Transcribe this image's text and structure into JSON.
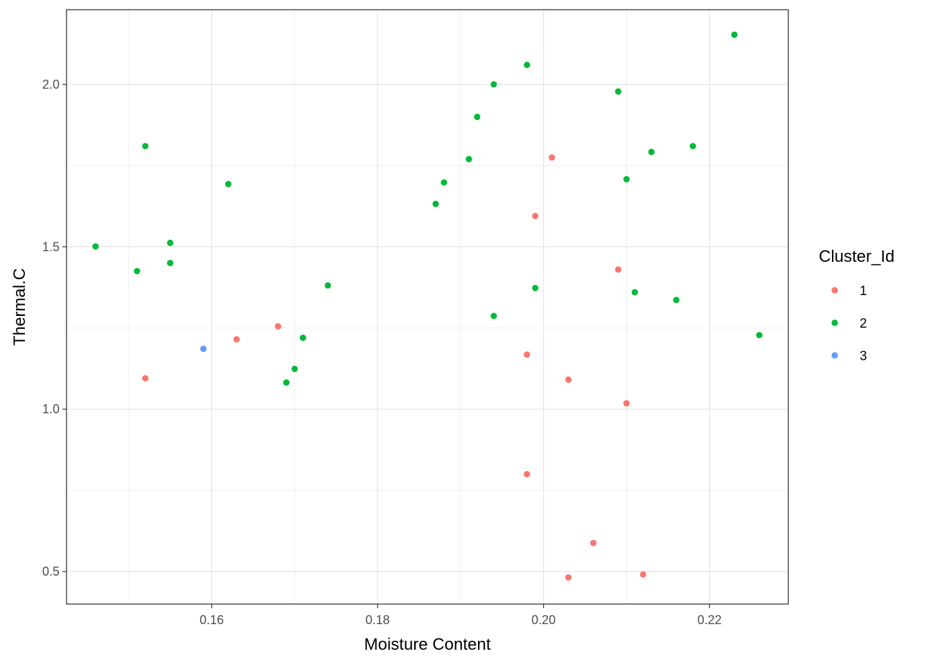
{
  "chart_data": {
    "type": "scatter",
    "title": "",
    "xlabel": "Moisture Content",
    "ylabel": "Thermal.C",
    "xlim": [
      0.1425,
      0.2295
    ],
    "ylim": [
      0.4,
      2.23
    ],
    "x_ticks": [
      0.16,
      0.18,
      0.2,
      0.22
    ],
    "x_tick_labels": [
      "0.16",
      "0.18",
      "0.20",
      "0.22"
    ],
    "y_ticks": [
      0.5,
      1.0,
      1.5,
      2.0
    ],
    "y_tick_labels": [
      "0.5",
      "1.0",
      "1.5",
      "2.0"
    ],
    "grid": true,
    "legend": {
      "title": "Cluster_Id",
      "position": "right"
    },
    "series": [
      {
        "name": "1",
        "color": "#F8766D",
        "points": [
          [
            0.152,
            1.095
          ],
          [
            0.163,
            1.215
          ],
          [
            0.168,
            1.255
          ],
          [
            0.198,
            1.168
          ],
          [
            0.199,
            1.595
          ],
          [
            0.201,
            1.775
          ],
          [
            0.203,
            1.091
          ],
          [
            0.209,
            1.43
          ],
          [
            0.21,
            1.018
          ],
          [
            0.198,
            0.8
          ],
          [
            0.206,
            0.588
          ],
          [
            0.203,
            0.482
          ],
          [
            0.212,
            0.491
          ]
        ]
      },
      {
        "name": "2",
        "color": "#00BA38",
        "points": [
          [
            0.146,
            1.501
          ],
          [
            0.151,
            1.425
          ],
          [
            0.152,
            1.81
          ],
          [
            0.155,
            1.512
          ],
          [
            0.155,
            1.45
          ],
          [
            0.162,
            1.693
          ],
          [
            0.169,
            1.082
          ],
          [
            0.17,
            1.124
          ],
          [
            0.171,
            1.22
          ],
          [
            0.174,
            1.381
          ],
          [
            0.187,
            1.632
          ],
          [
            0.188,
            1.698
          ],
          [
            0.191,
            1.77
          ],
          [
            0.192,
            1.9
          ],
          [
            0.194,
            2.0
          ],
          [
            0.194,
            1.287
          ],
          [
            0.198,
            2.06
          ],
          [
            0.199,
            1.373
          ],
          [
            0.209,
            1.978
          ],
          [
            0.21,
            1.708
          ],
          [
            0.211,
            1.36
          ],
          [
            0.213,
            1.792
          ],
          [
            0.216,
            1.336
          ],
          [
            0.218,
            1.81
          ],
          [
            0.223,
            2.153
          ],
          [
            0.226,
            1.228
          ]
        ]
      },
      {
        "name": "3",
        "color": "#619CFF",
        "points": [
          [
            0.159,
            1.186
          ]
        ]
      }
    ]
  }
}
